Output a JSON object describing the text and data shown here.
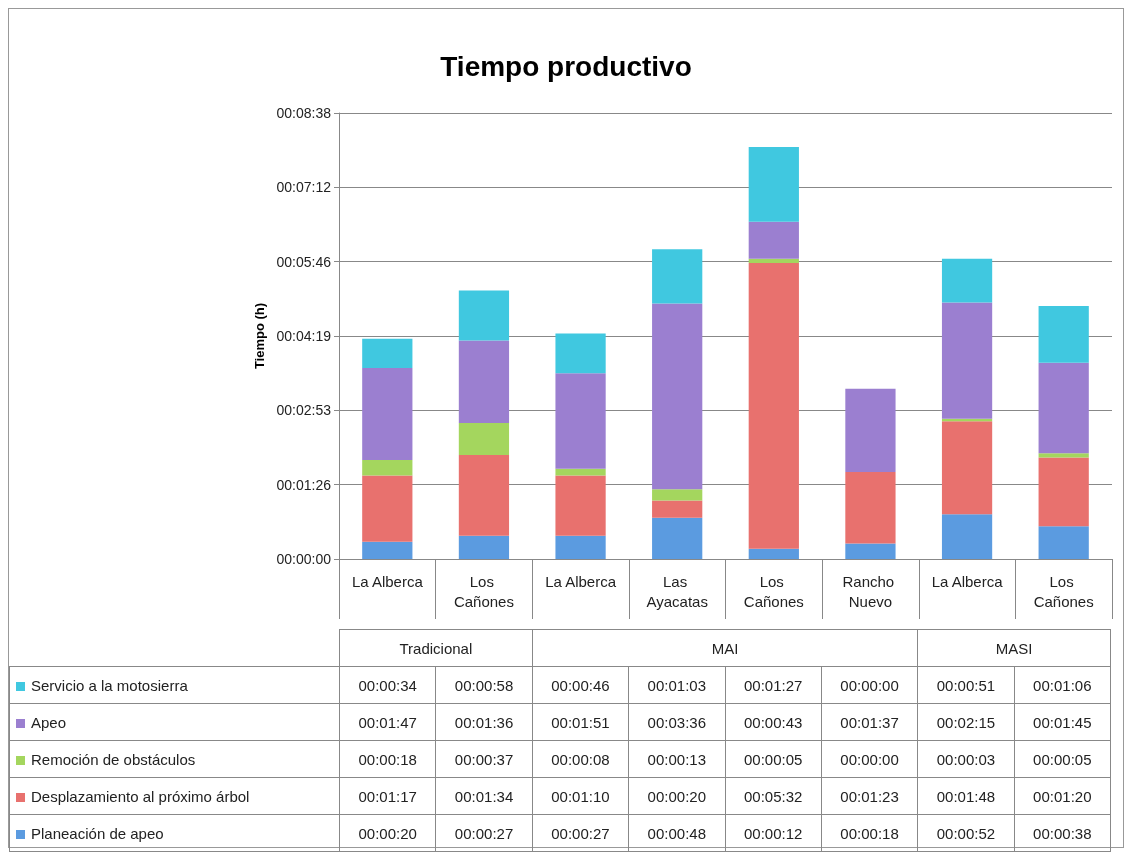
{
  "chart_data": {
    "type": "bar",
    "stacked": true,
    "title": "Tiempo productivo",
    "ylabel": "Tiempo (h)",
    "categories": [
      "La Alberca",
      "Los Cañones",
      "La Alberca",
      "Las Ayacatas",
      "Los Cañones",
      "Rancho Nuevo",
      "La Alberca",
      "Los Cañones"
    ],
    "annotations": [
      "Tradicional",
      "MAI",
      "MASI"
    ],
    "ylim": [
      0,
      518.4
    ],
    "yticks": [
      {
        "value": 0,
        "label": "00:00:00"
      },
      {
        "value": 86.4,
        "label": "00:01:26"
      },
      {
        "value": 172.8,
        "label": "00:02:53"
      },
      {
        "value": 259.2,
        "label": "00:04:19"
      },
      {
        "value": 345.6,
        "label": "00:05:46"
      },
      {
        "value": 432,
        "label": "00:07:12"
      },
      {
        "value": 518.4,
        "label": "00:08:38"
      }
    ],
    "grid": "y",
    "legend": "bottom left",
    "series": [
      {
        "name": "Planeación de apeo",
        "color": "#5b9be0",
        "values": [
          20,
          27,
          27,
          48,
          12,
          18,
          52,
          38
        ],
        "value_labels": [
          "00:00:20",
          "00:00:27",
          "00:00:27",
          "00:00:48",
          "00:00:12",
          "00:00:18",
          "00:00:52",
          "00:00:38"
        ]
      },
      {
        "name": "Desplazamiento al próximo árbol",
        "color": "#e8716e",
        "values": [
          77,
          94,
          70,
          20,
          332,
          83,
          108,
          80
        ],
        "value_labels": [
          "00:01:17",
          "00:01:34",
          "00:01:10",
          "00:00:20",
          "00:05:32",
          "00:01:23",
          "00:01:48",
          "00:01:20"
        ]
      },
      {
        "name": "Remoción de obstáculos",
        "color": "#a4d65e",
        "values": [
          18,
          37,
          8,
          13,
          5,
          0,
          3,
          5
        ],
        "value_labels": [
          "00:00:18",
          "00:00:37",
          "00:00:08",
          "00:00:13",
          "00:00:05",
          "00:00:00",
          "00:00:03",
          "00:00:05"
        ]
      },
      {
        "name": "Apeo",
        "color": "#9b7fd0",
        "values": [
          107,
          96,
          111,
          216,
          43,
          97,
          135,
          105
        ],
        "value_labels": [
          "00:01:47",
          "00:01:36",
          "00:01:51",
          "00:03:36",
          "00:00:43",
          "00:01:37",
          "00:02:15",
          "00:01:45"
        ]
      },
      {
        "name": "Servicio a la motosierra",
        "color": "#40c8e0",
        "values": [
          34,
          58,
          46,
          63,
          87,
          0,
          51,
          66
        ],
        "value_labels": [
          "00:00:34",
          "00:00:58",
          "00:00:46",
          "00:01:03",
          "00:01:27",
          "00:00:00",
          "00:00:51",
          "00:01:06"
        ]
      }
    ]
  }
}
